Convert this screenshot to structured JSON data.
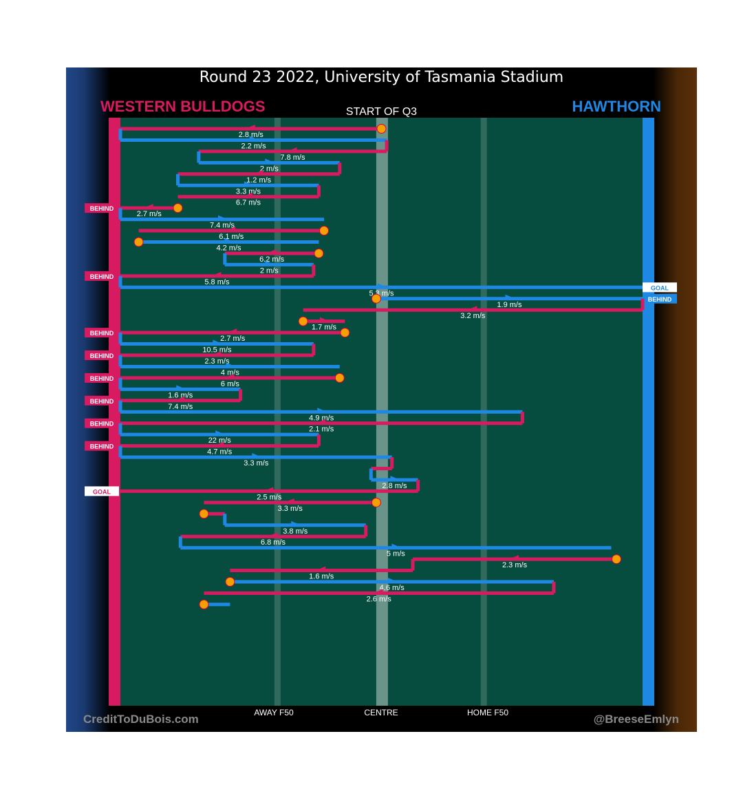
{
  "header": {
    "title": "Round 23 2022, University of Tasmania Stadium",
    "quarter": "START OF Q3",
    "team_left": "WESTERN BULLDOGS",
    "team_right": "HAWTHORN"
  },
  "footer": {
    "credit_left": "CreditToDuBois.com",
    "credit_right": "@BreeseEmlyn"
  },
  "colors": {
    "bulldogs": "#d81b60",
    "hawthorn": "#1e88e5",
    "field": "#074d3f",
    "stoppage": "#f5a000"
  },
  "chart_data": {
    "type": "line",
    "title": "Round 23 2022, University of Tasmania Stadium",
    "subtitle": "START OF Q3",
    "x_ticks": [
      "AWAY F50",
      "CENTRE",
      "HOME F50"
    ],
    "legend": [
      "WESTERN BULLDOGS",
      "HAWTHORN"
    ],
    "chains": [
      {
        "team": "bulldogs",
        "from": 0.5,
        "to": 0.0,
        "speed": "2.8 m/s",
        "start": "stoppage"
      },
      {
        "team": "hawthorn",
        "from": 0.0,
        "to": 0.51,
        "speed": "2.2 m/s"
      },
      {
        "team": "bulldogs",
        "from": 0.51,
        "to": 0.15,
        "speed": "7.8 m/s"
      },
      {
        "team": "hawthorn",
        "from": 0.15,
        "to": 0.42,
        "speed": "2 m/s"
      },
      {
        "team": "bulldogs",
        "from": 0.42,
        "to": 0.11,
        "speed": "1.2 m/s"
      },
      {
        "team": "hawthorn",
        "from": 0.11,
        "to": 0.38,
        "speed": "3.3 m/s"
      },
      {
        "team": "bulldogs",
        "from": 0.38,
        "to": 0.11,
        "speed": "6.7 m/s"
      },
      {
        "team": "bulldogs",
        "from": 0.11,
        "to": 0.0,
        "speed": "2.7 m/s",
        "start": "stoppage",
        "outcome": "BEHIND"
      },
      {
        "team": "hawthorn",
        "from": 0.0,
        "to": 0.39,
        "speed": "7.4 m/s"
      },
      {
        "team": "bulldogs",
        "from": 0.39,
        "to": 0.035,
        "speed": "6.1 m/s",
        "start": "stoppage"
      },
      {
        "team": "hawthorn",
        "from": 0.035,
        "to": 0.38,
        "speed": "4.2 m/s",
        "start": "stoppage"
      },
      {
        "team": "bulldogs",
        "from": 0.38,
        "to": 0.2,
        "speed": "6.2 m/s",
        "start": "stoppage"
      },
      {
        "team": "hawthorn",
        "from": 0.2,
        "to": 0.37,
        "speed": "2 m/s"
      },
      {
        "team": "bulldogs",
        "from": 0.37,
        "to": 0.0,
        "speed": "5.8 m/s",
        "outcome": "BEHIND"
      },
      {
        "team": "hawthorn",
        "from": 0.0,
        "to": 1.0,
        "speed": "5.3 m/s",
        "outcome": "GOAL"
      },
      {
        "team": "hawthorn",
        "from": 0.49,
        "to": 1.0,
        "speed": "1.9 m/s",
        "start": "stoppage",
        "outcome": "BEHIND"
      },
      {
        "team": "bulldogs",
        "from": 1.0,
        "to": 0.35,
        "speed": "3.2 m/s"
      },
      {
        "team": "bulldogs",
        "from": 0.35,
        "to": 0.43,
        "speed": "1.7 m/s",
        "start": "stoppage"
      },
      {
        "team": "bulldogs",
        "from": 0.43,
        "to": 0.0,
        "speed": "2.7 m/s",
        "start": "stoppage",
        "outcome": "BEHIND"
      },
      {
        "team": "hawthorn",
        "from": 0.0,
        "to": 0.37,
        "speed": "10.5 m/s"
      },
      {
        "team": "bulldogs",
        "from": 0.37,
        "to": 0.0,
        "speed": "2.3 m/s",
        "outcome": "BEHIND"
      },
      {
        "team": "hawthorn",
        "from": 0.0,
        "to": 0.42,
        "speed": "4 m/s"
      },
      {
        "team": "bulldogs",
        "from": 0.42,
        "to": 0.0,
        "speed": "6 m/s",
        "start": "stoppage",
        "outcome": "BEHIND"
      },
      {
        "team": "hawthorn",
        "from": 0.0,
        "to": 0.23,
        "speed": "1.6 m/s"
      },
      {
        "team": "bulldogs",
        "from": 0.23,
        "to": 0.0,
        "speed": "7.4 m/s",
        "outcome": "BEHIND"
      },
      {
        "team": "hawthorn",
        "from": 0.0,
        "to": 0.77,
        "speed": "4.9 m/s"
      },
      {
        "team": "bulldogs",
        "from": 0.77,
        "to": 0.0,
        "speed": "2.1 m/s",
        "outcome": "BEHIND"
      },
      {
        "team": "hawthorn",
        "from": 0.0,
        "to": 0.38,
        "speed": "22 m/s"
      },
      {
        "team": "bulldogs",
        "from": 0.38,
        "to": 0.0,
        "speed": "4.7 m/s",
        "outcome": "BEHIND"
      },
      {
        "team": "hawthorn",
        "from": 0.0,
        "to": 0.52,
        "speed": "3.3 m/s"
      },
      {
        "team": "bulldogs",
        "from": 0.52,
        "to": 0.48,
        "speed": ""
      },
      {
        "team": "hawthorn",
        "from": 0.48,
        "to": 0.57,
        "speed": "2.8 m/s"
      },
      {
        "team": "bulldogs",
        "from": 0.57,
        "to": 0.0,
        "speed": "2.5 m/s",
        "outcome": "GOAL"
      },
      {
        "team": "bulldogs",
        "from": 0.49,
        "to": 0.16,
        "speed": "3.3 m/s",
        "start": "stoppage"
      },
      {
        "team": "bulldogs",
        "from": 0.16,
        "to": 0.2,
        "speed": "",
        "start": "stoppage"
      },
      {
        "team": "hawthorn",
        "from": 0.2,
        "to": 0.47,
        "speed": "3.8 m/s"
      },
      {
        "team": "bulldogs",
        "from": 0.47,
        "to": 0.115,
        "speed": "6.8 m/s"
      },
      {
        "team": "hawthorn",
        "from": 0.115,
        "to": 0.94,
        "speed": "5 m/s"
      },
      {
        "team": "bulldogs",
        "from": 0.95,
        "to": 0.56,
        "speed": "2.3 m/s",
        "start": "stoppage"
      },
      {
        "team": "bulldogs",
        "from": 0.56,
        "to": 0.21,
        "speed": "1.6 m/s"
      },
      {
        "team": "hawthorn",
        "from": 0.21,
        "to": 0.83,
        "speed": "4.6 m/s",
        "start": "stoppage"
      },
      {
        "team": "bulldogs",
        "from": 0.83,
        "to": 0.16,
        "speed": "2.6 m/s"
      },
      {
        "team": "hawthorn",
        "from": 0.16,
        "to": 0.21,
        "speed": "",
        "start": "stoppage"
      }
    ]
  }
}
